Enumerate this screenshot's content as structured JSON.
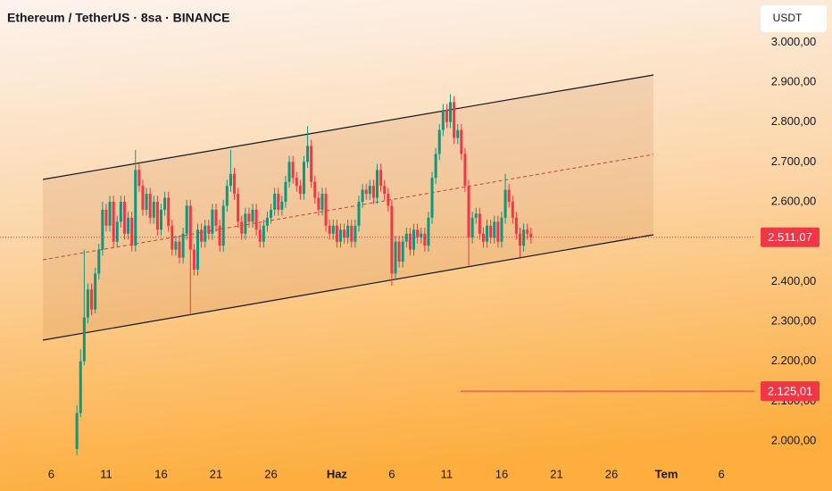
{
  "chart_data": {
    "type": "candlestick",
    "title": "Ethereum / TetherUS · 8sa · BINANCE",
    "currency": "USDT",
    "up_color": "#089981",
    "down_color": "#f23645",
    "open": [
      1980,
      2070,
      2200,
      2310,
      2380,
      2330,
      2420,
      2480,
      2580,
      2540,
      2600,
      2500,
      2550,
      2600,
      2520,
      2560,
      2490,
      2680,
      2640,
      2580,
      2620,
      2560,
      2600,
      2530,
      2580,
      2610,
      2540,
      2480,
      2500,
      2460,
      2520,
      2590,
      2480,
      2430,
      2530,
      2500,
      2540,
      2520,
      2580,
      2540,
      2490,
      2590,
      2640,
      2670,
      2620,
      2550,
      2520,
      2570,
      2550,
      2580,
      2530,
      2500,
      2540,
      2560,
      2580,
      2620,
      2580,
      2600,
      2650,
      2700,
      2660,
      2640,
      2620,
      2700,
      2740,
      2650,
      2610,
      2580,
      2620,
      2540,
      2520,
      2540,
      2500,
      2530,
      2510,
      2540,
      2500,
      2540,
      2600,
      2630,
      2620,
      2640,
      2610,
      2680,
      2640,
      2620,
      2590,
      2420,
      2500,
      2450,
      2500,
      2520,
      2480,
      2530,
      2510,
      2520,
      2490,
      2560,
      2660,
      2720,
      2780,
      2830,
      2800,
      2850,
      2760,
      2780,
      2720,
      2640,
      2510,
      2560,
      2570,
      2520,
      2500,
      2540,
      2510,
      2550,
      2500,
      2560,
      2630,
      2600,
      2560,
      2520,
      2490,
      2530,
      2520
    ],
    "high": [
      2090,
      2230,
      2480,
      2395,
      2395,
      2435,
      2495,
      2600,
      2595,
      2615,
      2615,
      2565,
      2615,
      2615,
      2575,
      2575,
      2730,
      2700,
      2655,
      2635,
      2635,
      2615,
      2615,
      2595,
      2625,
      2625,
      2555,
      2515,
      2515,
      2535,
      2605,
      2605,
      2495,
      2545,
      2545,
      2555,
      2555,
      2595,
      2595,
      2555,
      2605,
      2655,
      2730,
      2685,
      2635,
      2565,
      2585,
      2585,
      2595,
      2595,
      2545,
      2555,
      2575,
      2595,
      2635,
      2635,
      2615,
      2665,
      2715,
      2715,
      2675,
      2655,
      2715,
      2790,
      2755,
      2665,
      2625,
      2635,
      2635,
      2555,
      2555,
      2555,
      2545,
      2545,
      2555,
      2555,
      2555,
      2615,
      2645,
      2645,
      2655,
      2655,
      2695,
      2695,
      2655,
      2635,
      2605,
      2515,
      2515,
      2515,
      2535,
      2535,
      2545,
      2545,
      2535,
      2535,
      2575,
      2675,
      2735,
      2795,
      2845,
      2845,
      2870,
      2865,
      2795,
      2795,
      2735,
      2655,
      2575,
      2585,
      2585,
      2535,
      2555,
      2555,
      2565,
      2565,
      2575,
      2670,
      2645,
      2615,
      2575,
      2535,
      2545,
      2545,
      2535
    ],
    "low": [
      1965,
      2060,
      2190,
      2295,
      2315,
      2320,
      2405,
      2465,
      2525,
      2525,
      2485,
      2485,
      2535,
      2505,
      2505,
      2475,
      2475,
      2625,
      2565,
      2565,
      2545,
      2545,
      2515,
      2515,
      2565,
      2525,
      2465,
      2465,
      2445,
      2445,
      2505,
      2320,
      2415,
      2415,
      2485,
      2485,
      2505,
      2505,
      2525,
      2475,
      2475,
      2575,
      2625,
      2605,
      2535,
      2505,
      2505,
      2535,
      2535,
      2515,
      2485,
      2485,
      2525,
      2545,
      2565,
      2565,
      2565,
      2585,
      2635,
      2645,
      2625,
      2605,
      2605,
      2685,
      2635,
      2595,
      2565,
      2565,
      2525,
      2505,
      2505,
      2485,
      2485,
      2495,
      2495,
      2485,
      2485,
      2525,
      2585,
      2605,
      2605,
      2595,
      2595,
      2625,
      2605,
      2575,
      2390,
      2405,
      2435,
      2435,
      2485,
      2465,
      2465,
      2495,
      2495,
      2475,
      2475,
      2545,
      2645,
      2705,
      2765,
      2785,
      2785,
      2745,
      2745,
      2705,
      2625,
      2440,
      2495,
      2545,
      2505,
      2485,
      2485,
      2495,
      2495,
      2485,
      2485,
      2545,
      2585,
      2545,
      2505,
      2460,
      2475,
      2505,
      2495
    ],
    "close": [
      2070,
      2200,
      2310,
      2380,
      2330,
      2420,
      2480,
      2580,
      2540,
      2600,
      2500,
      2550,
      2600,
      2520,
      2560,
      2490,
      2680,
      2640,
      2580,
      2620,
      2560,
      2600,
      2530,
      2580,
      2610,
      2540,
      2480,
      2500,
      2460,
      2520,
      2590,
      2480,
      2430,
      2530,
      2500,
      2540,
      2520,
      2580,
      2540,
      2490,
      2590,
      2640,
      2670,
      2620,
      2550,
      2520,
      2570,
      2550,
      2580,
      2530,
      2500,
      2540,
      2560,
      2580,
      2620,
      2580,
      2600,
      2650,
      2700,
      2660,
      2640,
      2620,
      2700,
      2740,
      2650,
      2610,
      2580,
      2620,
      2540,
      2520,
      2540,
      2500,
      2530,
      2510,
      2540,
      2500,
      2540,
      2600,
      2630,
      2620,
      2640,
      2610,
      2680,
      2640,
      2620,
      2590,
      2420,
      2500,
      2450,
      2500,
      2520,
      2480,
      2530,
      2510,
      2520,
      2490,
      2560,
      2660,
      2720,
      2780,
      2830,
      2800,
      2850,
      2760,
      2780,
      2720,
      2640,
      2510,
      2560,
      2570,
      2520,
      2500,
      2540,
      2510,
      2550,
      2500,
      2560,
      2630,
      2600,
      2560,
      2520,
      2490,
      2530,
      2520,
      2511
    ],
    "xlim": [
      -21,
      185
    ],
    "xticks": [
      {
        "value": -7,
        "label": "6"
      },
      {
        "value": 8,
        "label": "11"
      },
      {
        "value": 23,
        "label": "16"
      },
      {
        "value": 38,
        "label": "21"
      },
      {
        "value": 53,
        "label": "26"
      },
      {
        "value": 71,
        "label": "Haz"
      },
      {
        "value": 86,
        "label": "6"
      },
      {
        "value": 101,
        "label": "11"
      },
      {
        "value": 116,
        "label": "16"
      },
      {
        "value": 131,
        "label": "21"
      },
      {
        "value": 146,
        "label": "26"
      },
      {
        "value": 161,
        "label": "Tem"
      },
      {
        "value": 176,
        "label": "6"
      }
    ],
    "ylim": [
      1953,
      3106
    ],
    "yticks": [
      {
        "value": 2000,
        "label": "2.000,00"
      },
      {
        "value": 2100,
        "label": "2.100,00"
      },
      {
        "value": 2200,
        "label": "2.200,00"
      },
      {
        "value": 2300,
        "label": "2.300,00"
      },
      {
        "value": 2400,
        "label": "2.400,00"
      },
      {
        "value": 2500,
        "label": "2.500,00"
      },
      {
        "value": 2600,
        "label": "2.600,00"
      },
      {
        "value": 2700,
        "label": "2.700,00"
      },
      {
        "value": 2800,
        "label": "2.800,00"
      },
      {
        "value": 2900,
        "label": "2.900,00"
      },
      {
        "value": 3000,
        "label": "3.000,00"
      }
    ],
    "price_lines": [
      {
        "value": 2511.07,
        "label": "2.511,07"
      },
      {
        "value": 2125.01,
        "label": "2.125,01"
      }
    ]
  }
}
